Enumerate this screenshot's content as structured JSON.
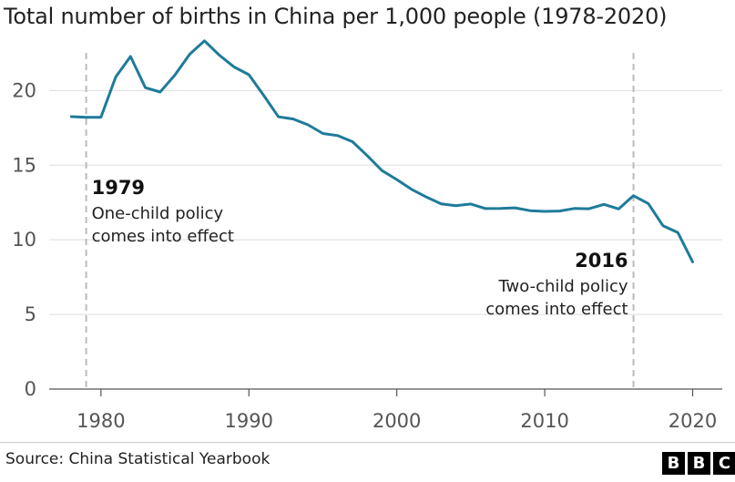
{
  "chart_data": {
    "type": "line",
    "title": "Total number of births in China per 1,000 people (1978-2020)",
    "x": [
      1978,
      1979,
      1980,
      1981,
      1982,
      1983,
      1984,
      1985,
      1986,
      1987,
      1988,
      1989,
      1990,
      1991,
      1992,
      1993,
      1994,
      1995,
      1996,
      1997,
      1998,
      1999,
      2000,
      2001,
      2002,
      2003,
      2004,
      2005,
      2006,
      2007,
      2008,
      2009,
      2010,
      2011,
      2012,
      2013,
      2014,
      2015,
      2016,
      2017,
      2018,
      2019,
      2020
    ],
    "series": [
      {
        "name": "",
        "values": [
          18.25,
          18.21,
          18.21,
          20.91,
          22.28,
          20.19,
          19.9,
          21.04,
          22.43,
          23.33,
          22.37,
          21.58,
          21.06,
          19.68,
          18.24,
          18.09,
          17.7,
          17.12,
          16.98,
          16.57,
          15.64,
          14.64,
          14.03,
          13.38,
          12.86,
          12.41,
          12.29,
          12.4,
          12.09,
          12.1,
          12.14,
          11.95,
          11.9,
          11.93,
          12.1,
          12.08,
          12.37,
          12.07,
          12.95,
          12.43,
          10.94,
          10.48,
          8.52
        ]
      }
    ],
    "xlim": [
      1976.5,
      2022
    ],
    "ylim": [
      0,
      23.5
    ],
    "yticks": [
      0,
      5,
      10,
      15,
      20
    ],
    "xticks": [
      1980,
      1990,
      2000,
      2010,
      2020
    ],
    "grid": true,
    "line_color": "#1e7b99",
    "annotations": [
      {
        "x": 1979,
        "year": "1979",
        "line1": "One-child policy",
        "line2": "comes into effect"
      },
      {
        "x": 2016,
        "year": "2016",
        "line1": "Two-child policy",
        "line2": "comes into effect"
      }
    ]
  },
  "source": "Source: China Statistical Yearbook",
  "logo_letters": [
    "B",
    "B",
    "C"
  ]
}
